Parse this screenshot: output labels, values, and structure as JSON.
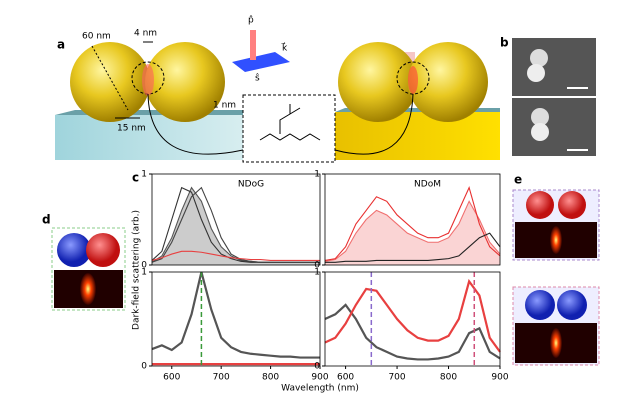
{
  "panels": [
    "a",
    "b",
    "c",
    "d",
    "e"
  ],
  "annotations": {
    "diameter": "60 nm",
    "gap": "4 nm",
    "spacer": "1 nm",
    "scale": "15 nm",
    "p": "p̂",
    "s": "ŝ",
    "k": "k⃗"
  },
  "xlabel": "Wavelength (nm)",
  "ylabel": "Dark-field scattering (arb.)",
  "chart_data": [
    {
      "type": "line",
      "title": "NDoG",
      "x": [
        560,
        580,
        600,
        620,
        640,
        660,
        680,
        700,
        720,
        740,
        760,
        780,
        800,
        820,
        840,
        860,
        880,
        900
      ],
      "xlim": [
        560,
        900
      ],
      "ylim": [
        0,
        1
      ],
      "yticks": [
        0,
        1
      ],
      "series": [
        {
          "color": "#555555",
          "fill": true,
          "values": [
            0.03,
            0.1,
            0.3,
            0.6,
            0.85,
            0.7,
            0.4,
            0.2,
            0.1,
            0.05,
            0.04,
            0.03,
            0.03,
            0.03,
            0.03,
            0.03,
            0.03,
            0.03
          ]
        },
        {
          "color": "#333333",
          "values": [
            0.05,
            0.15,
            0.5,
            0.85,
            0.8,
            0.5,
            0.25,
            0.12,
            0.07,
            0.04,
            0.03,
            0.03,
            0.03,
            0.03,
            0.03,
            0.03,
            0.03,
            0.03
          ]
        },
        {
          "color": "#444444",
          "values": [
            0.03,
            0.07,
            0.25,
            0.5,
            0.75,
            0.85,
            0.6,
            0.3,
            0.12,
            0.06,
            0.04,
            0.03,
            0.03,
            0.03,
            0.03,
            0.03,
            0.03,
            0.03
          ]
        },
        {
          "color": "#e84040",
          "values": [
            0.05,
            0.08,
            0.12,
            0.15,
            0.15,
            0.14,
            0.12,
            0.1,
            0.08,
            0.07,
            0.06,
            0.06,
            0.05,
            0.05,
            0.05,
            0.05,
            0.05,
            0.05
          ]
        }
      ]
    },
    {
      "type": "line",
      "title": "NDoM",
      "x": [
        560,
        580,
        600,
        620,
        640,
        660,
        680,
        700,
        720,
        740,
        760,
        780,
        800,
        820,
        840,
        860,
        880,
        900
      ],
      "xlim": [
        560,
        900
      ],
      "ylim": [
        0,
        1
      ],
      "yticks": [
        0,
        1
      ],
      "series": [
        {
          "color": "#f07070",
          "fill": true,
          "values": [
            0.04,
            0.06,
            0.15,
            0.35,
            0.5,
            0.6,
            0.55,
            0.45,
            0.35,
            0.3,
            0.25,
            0.25,
            0.3,
            0.45,
            0.7,
            0.5,
            0.25,
            0.12
          ]
        },
        {
          "color": "#e83030",
          "values": [
            0.05,
            0.07,
            0.2,
            0.45,
            0.6,
            0.75,
            0.7,
            0.55,
            0.45,
            0.35,
            0.3,
            0.3,
            0.35,
            0.6,
            0.85,
            0.45,
            0.2,
            0.1
          ]
        },
        {
          "color": "#222222",
          "values": [
            0.03,
            0.03,
            0.04,
            0.04,
            0.04,
            0.05,
            0.05,
            0.05,
            0.05,
            0.05,
            0.05,
            0.06,
            0.07,
            0.1,
            0.2,
            0.3,
            0.35,
            0.2
          ]
        }
      ]
    },
    {
      "type": "line",
      "x": [
        560,
        580,
        600,
        620,
        640,
        660,
        680,
        700,
        720,
        740,
        760,
        780,
        800,
        820,
        840,
        860,
        880,
        900
      ],
      "xlim": [
        560,
        900
      ],
      "ylim": [
        0,
        1
      ],
      "yticks": [
        0,
        1
      ],
      "xticks": [
        600,
        700,
        800,
        900
      ],
      "vlines": [
        {
          "x": 660,
          "color": "#3a9a3a"
        }
      ],
      "series": [
        {
          "color": "#555555",
          "values": [
            0.18,
            0.22,
            0.17,
            0.25,
            0.55,
            1.0,
            0.6,
            0.3,
            0.2,
            0.15,
            0.13,
            0.12,
            0.11,
            0.1,
            0.1,
            0.09,
            0.09,
            0.09
          ]
        },
        {
          "color": "#e84040",
          "values": [
            0.02,
            0.02,
            0.02,
            0.02,
            0.02,
            0.02,
            0.02,
            0.02,
            0.02,
            0.02,
            0.02,
            0.02,
            0.02,
            0.02,
            0.02,
            0.02,
            0.02,
            0.02
          ]
        }
      ]
    },
    {
      "type": "line",
      "x": [
        560,
        580,
        600,
        620,
        640,
        660,
        680,
        700,
        720,
        740,
        760,
        780,
        800,
        820,
        840,
        860,
        880,
        900
      ],
      "xlim": [
        560,
        900
      ],
      "ylim": [
        0,
        1
      ],
      "yticks": [
        0,
        1
      ],
      "xticks": [
        600,
        700,
        800,
        900
      ],
      "vlines": [
        {
          "x": 650,
          "color": "#8a6acc"
        },
        {
          "x": 850,
          "color": "#d0507a"
        }
      ],
      "series": [
        {
          "color": "#555555",
          "values": [
            0.5,
            0.55,
            0.65,
            0.5,
            0.3,
            0.2,
            0.15,
            0.1,
            0.08,
            0.07,
            0.07,
            0.08,
            0.1,
            0.15,
            0.35,
            0.4,
            0.15,
            0.08
          ]
        },
        {
          "color": "#e84040",
          "values": [
            0.25,
            0.3,
            0.45,
            0.65,
            0.82,
            0.8,
            0.65,
            0.5,
            0.38,
            0.3,
            0.27,
            0.27,
            0.32,
            0.5,
            0.9,
            0.75,
            0.3,
            0.15
          ]
        }
      ]
    }
  ]
}
